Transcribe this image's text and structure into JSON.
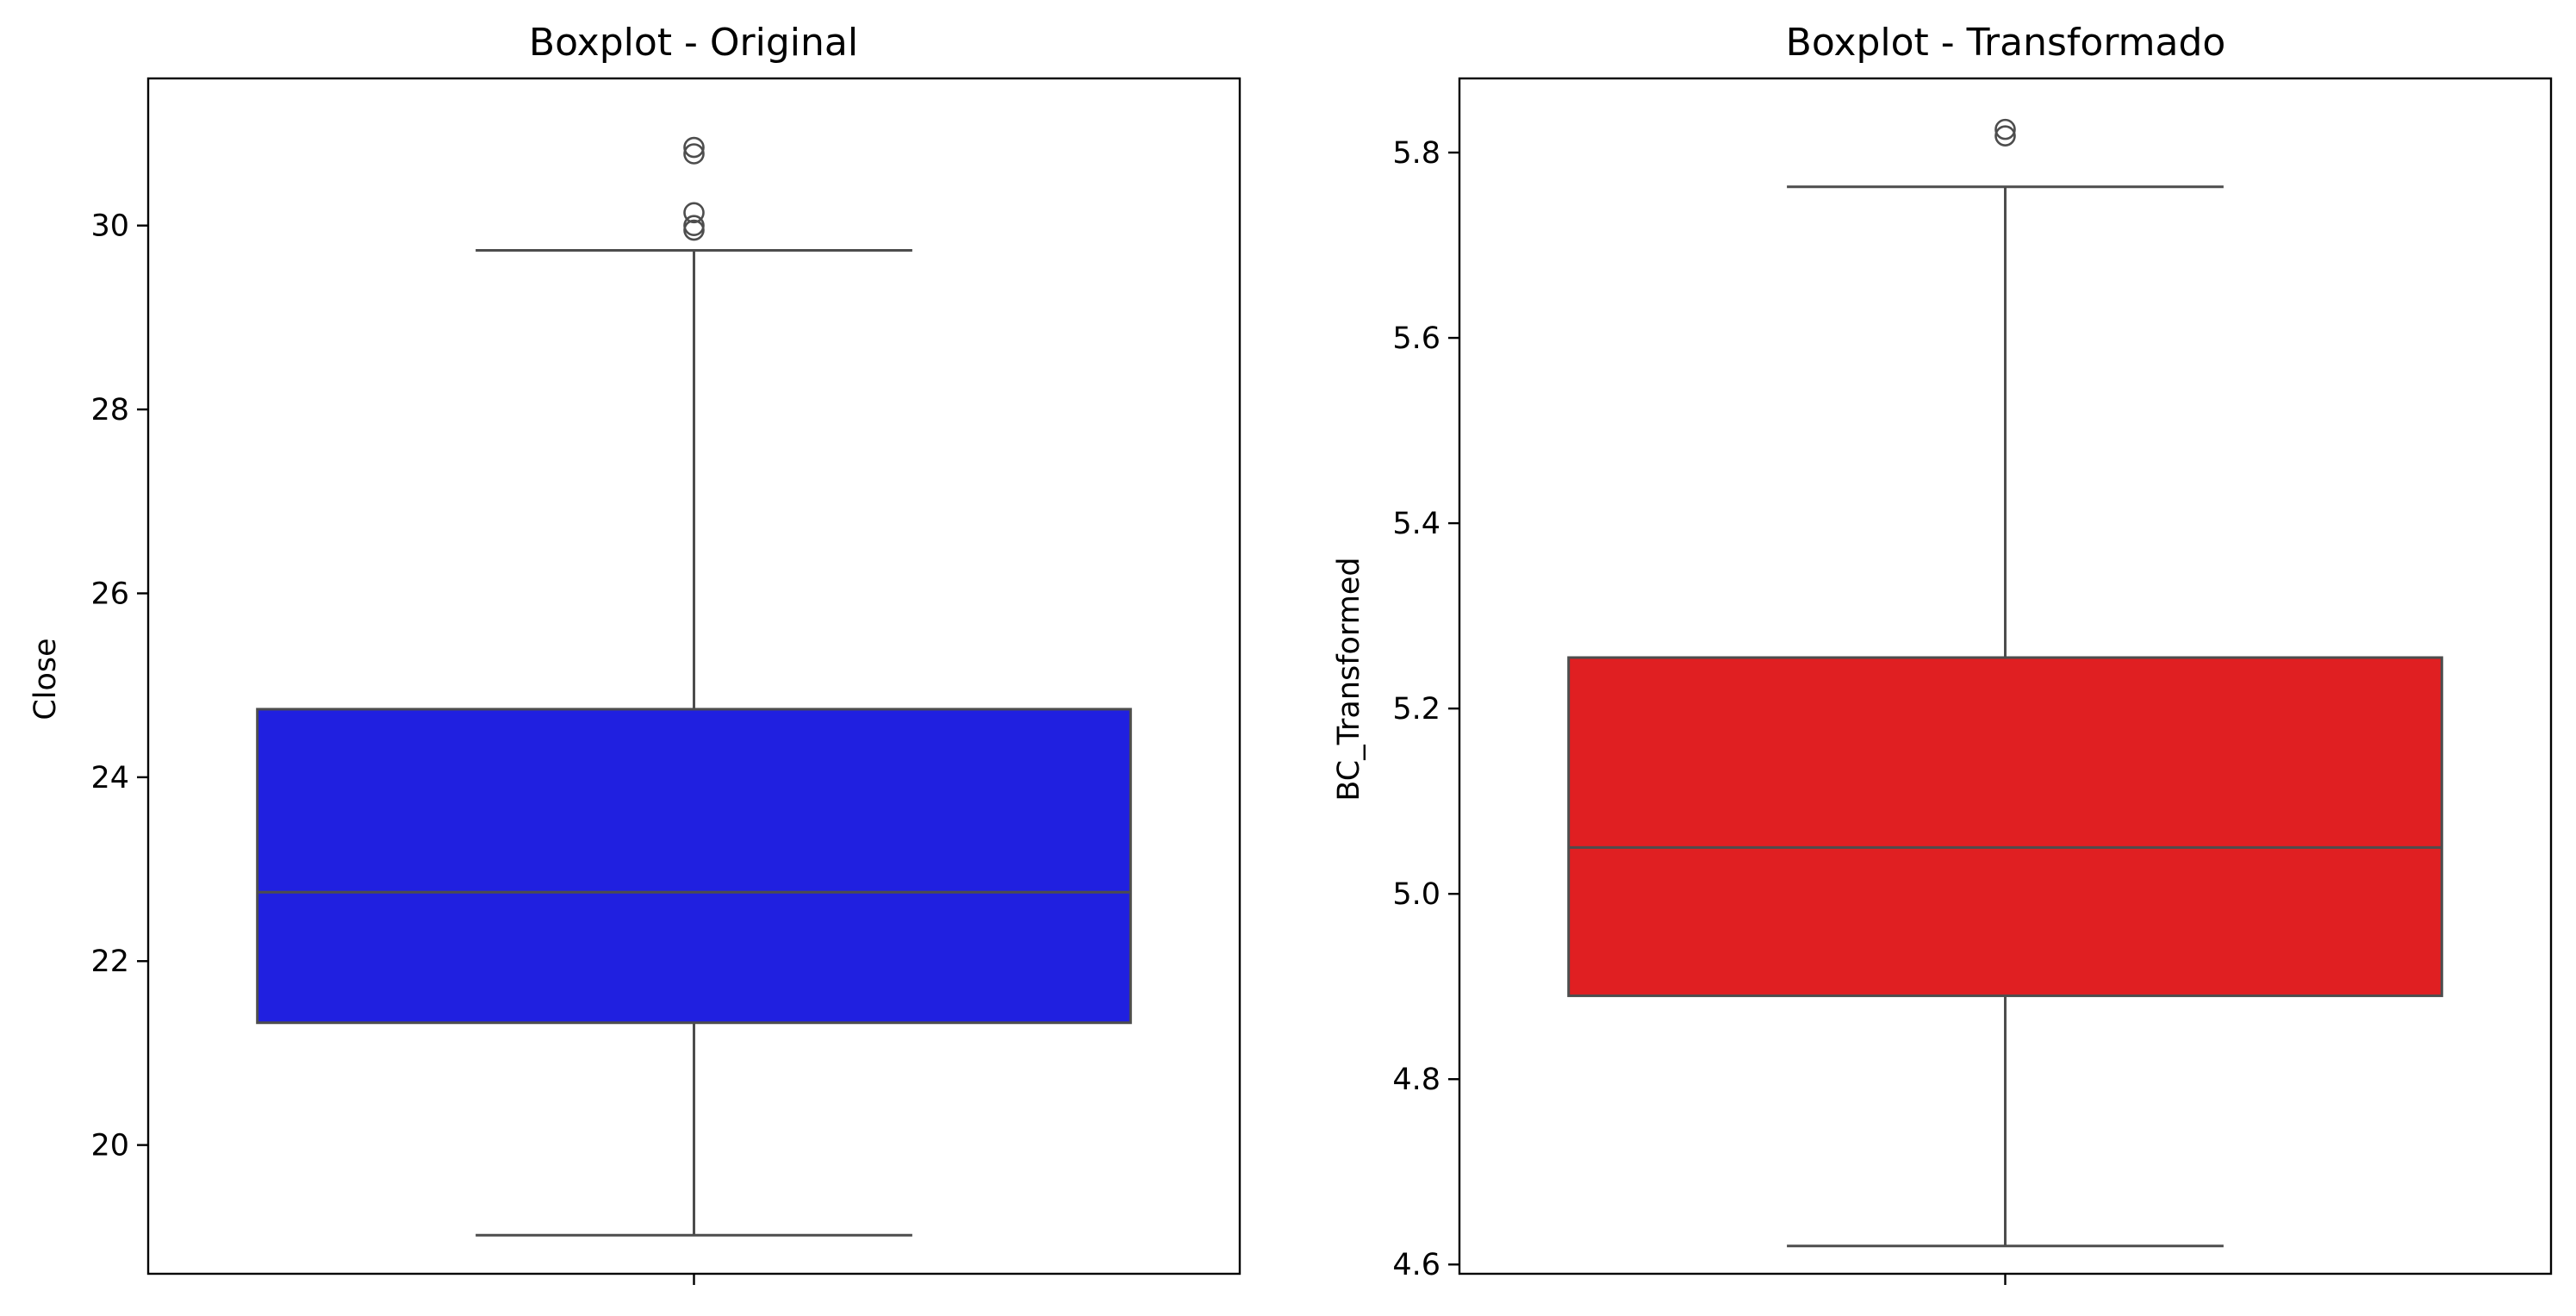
{
  "chart_data": [
    {
      "type": "box",
      "title": "Boxplot - Original",
      "xlabel": "",
      "ylabel": "Close",
      "ylim": [
        18.6,
        31.6
      ],
      "yticks": [
        20,
        22,
        24,
        26,
        28,
        30
      ],
      "ytick_labels": [
        "20",
        "22",
        "24",
        "26",
        "28",
        "30"
      ],
      "box": {
        "whisker_low": 19.02,
        "q1": 21.33,
        "median": 22.75,
        "q3": 24.74,
        "whisker_high": 29.73,
        "outliers": [
          29.95,
          30.0,
          30.14,
          30.78,
          30.85
        ]
      },
      "color": "#2020e0",
      "grid": false
    },
    {
      "type": "box",
      "title": "Boxplot - Transformado",
      "xlabel": "",
      "ylabel": "BC_Transformed",
      "ylim": [
        4.59,
        5.88
      ],
      "yticks": [
        4.6,
        4.8,
        5.0,
        5.2,
        5.4,
        5.6,
        5.8
      ],
      "ytick_labels": [
        "4.6",
        "4.8",
        "5.0",
        "5.2",
        "5.4",
        "5.6",
        "5.8"
      ],
      "box": {
        "whisker_low": 4.62,
        "q1": 4.89,
        "median": 5.05,
        "q3": 5.255,
        "whisker_high": 5.763,
        "outliers": [
          5.818,
          5.825
        ]
      },
      "color": "#e01f22",
      "grid": false
    }
  ]
}
